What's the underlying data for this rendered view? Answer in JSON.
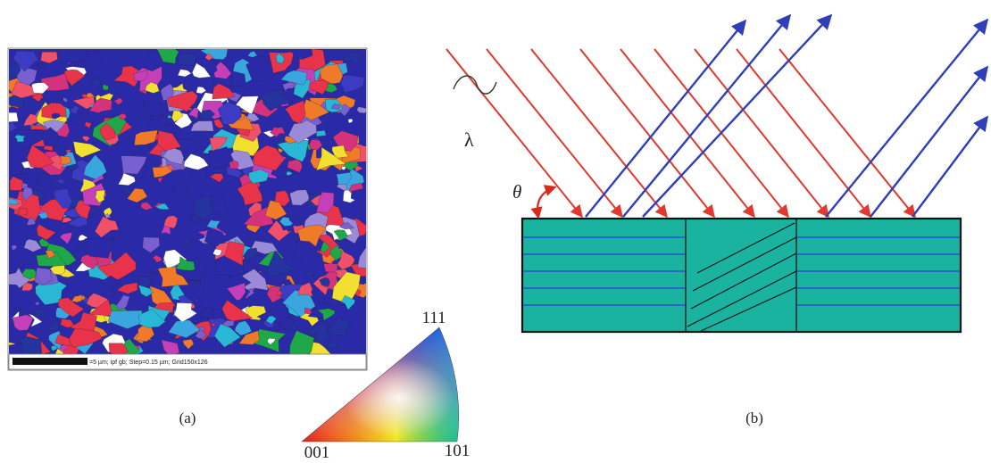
{
  "panel_a": {
    "scale_bar_text": "=5 µm; ipf gb; Step=0.15 µm; Grid150x126",
    "caption": "(a)"
  },
  "legend_triangle": {
    "label_top": "111",
    "label_left": "001",
    "label_right": "101"
  },
  "panel_b": {
    "wavelength_symbol": "λ",
    "angle_symbol": "θ",
    "caption": "(b)",
    "colors": {
      "incident_ray": "#e03a2f",
      "diffracted_ray": "#2f3fb8",
      "crystal_fill": "#19b3a0",
      "lattice_plane": "#2a4fd0",
      "angle_arrow": "#d9281c"
    }
  }
}
